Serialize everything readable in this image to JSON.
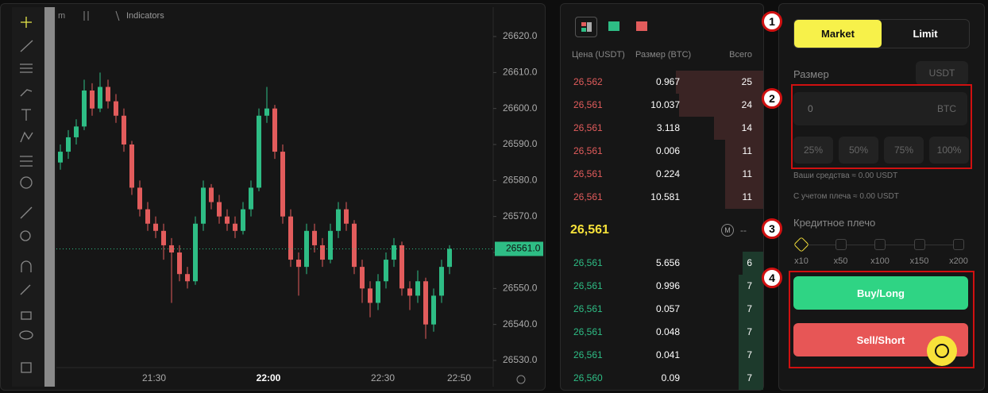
{
  "toolbar": {
    "interval": "m",
    "indicators": "Indicators"
  },
  "chart": {
    "type": "candlestick",
    "candles": [
      [
        26585,
        26590,
        26583,
        26588
      ],
      [
        26588,
        26594,
        26586,
        26592
      ],
      [
        26592,
        26597,
        26590,
        26595
      ],
      [
        26595,
        26608,
        26594,
        26605
      ],
      [
        26605,
        26607,
        26598,
        26600
      ],
      [
        26600,
        26610,
        26599,
        26606
      ],
      [
        26606,
        26608,
        26600,
        26602
      ],
      [
        26602,
        26604,
        26596,
        26598
      ],
      [
        26598,
        26600,
        26588,
        26590
      ],
      [
        26590,
        26591,
        26576,
        26578
      ],
      [
        26578,
        26580,
        26570,
        26572
      ],
      [
        26572,
        26574,
        26566,
        26568
      ],
      [
        26568,
        26570,
        26564,
        26566
      ],
      [
        26566,
        26568,
        26558,
        26562
      ],
      [
        26562,
        26564,
        26546,
        26560
      ],
      [
        26560,
        26562,
        26552,
        26554
      ],
      [
        26554,
        26556,
        26550,
        26552
      ],
      [
        26552,
        26570,
        26551,
        26568
      ],
      [
        26568,
        26580,
        26566,
        26578
      ],
      [
        26578,
        26579,
        26572,
        26574
      ],
      [
        26574,
        26576,
        26568,
        26570
      ],
      [
        26570,
        26572,
        26566,
        26568
      ],
      [
        26568,
        26570,
        26564,
        26566
      ],
      [
        26566,
        26574,
        26565,
        26572
      ],
      [
        26572,
        26580,
        26570,
        26578
      ],
      [
        26578,
        26600,
        26577,
        26598
      ],
      [
        26598,
        26606,
        26596,
        26600
      ],
      [
        26600,
        26601,
        26586,
        26588
      ],
      [
        26588,
        26590,
        26568,
        26570
      ],
      [
        26570,
        26572,
        26556,
        26558
      ],
      [
        26558,
        26560,
        26548,
        26556
      ],
      [
        26556,
        26568,
        26554,
        26566
      ],
      [
        26566,
        26568,
        26560,
        26562
      ],
      [
        26562,
        26564,
        26556,
        26558
      ],
      [
        26558,
        26568,
        26557,
        26566
      ],
      [
        26566,
        26574,
        26564,
        26572
      ],
      [
        26572,
        26574,
        26566,
        26568
      ],
      [
        26568,
        26569,
        26554,
        26556
      ],
      [
        26556,
        26558,
        26546,
        26550
      ],
      [
        26550,
        26552,
        26542,
        26546
      ],
      [
        26546,
        26554,
        26544,
        26552
      ],
      [
        26552,
        26560,
        26550,
        26558
      ],
      [
        26558,
        26564,
        26556,
        26562
      ],
      [
        26562,
        26563,
        26548,
        26550
      ],
      [
        26550,
        26552,
        26544,
        26548
      ],
      [
        26548,
        26555,
        26546,
        26552
      ],
      [
        26552,
        26553,
        26536,
        26540
      ],
      [
        26540,
        26550,
        26538,
        26548
      ],
      [
        26548,
        26558,
        26546,
        26556
      ],
      [
        26556,
        26562,
        26554,
        26561
      ]
    ],
    "up_color": "#2ebd85",
    "down_color": "#e25c5c",
    "ylim": [
      26530,
      26620
    ],
    "yticks": [
      {
        "value": 26530,
        "label": "26530.0"
      },
      {
        "value": 26540,
        "label": "26540.0"
      },
      {
        "value": 26550,
        "label": "26550.0"
      },
      {
        "value": 26560,
        "label": "26560.0"
      },
      {
        "value": 26570,
        "label": "26570.0"
      },
      {
        "value": 26580,
        "label": "26580.0"
      },
      {
        "value": 26590,
        "label": "26590.0"
      },
      {
        "value": 26600,
        "label": "26600.0"
      },
      {
        "value": 26610,
        "label": "26610.0"
      },
      {
        "value": 26620,
        "label": "26620.0"
      }
    ],
    "xticks": [
      "21:30",
      "22:00",
      "22:30",
      "22:50"
    ],
    "current_price": {
      "value": 26561,
      "label": "26561.0"
    }
  },
  "order_book": {
    "headers": [
      "Цена (USDT)",
      "Размер (BTC)",
      "Всего"
    ],
    "asks": [
      {
        "price": "26,562",
        "size": "0.967",
        "total": 25
      },
      {
        "price": "26,561",
        "size": "10.037",
        "total": 24
      },
      {
        "price": "26,561",
        "size": "3.118",
        "total": 14
      },
      {
        "price": "26,561",
        "size": "0.006",
        "total": 11
      },
      {
        "price": "26,561",
        "size": "0.224",
        "total": 11
      },
      {
        "price": "26,561",
        "size": "10.581",
        "total": 11
      }
    ],
    "last_price": "26,561",
    "mark": "M",
    "mark_value": "--",
    "bids": [
      {
        "price": "26,561",
        "size": "5.656",
        "total": 6
      },
      {
        "price": "26,561",
        "size": "0.996",
        "total": 7
      },
      {
        "price": "26,561",
        "size": "0.057",
        "total": 7
      },
      {
        "price": "26,561",
        "size": "0.048",
        "total": 7
      },
      {
        "price": "26,561",
        "size": "0.041",
        "total": 7
      },
      {
        "price": "26,560",
        "size": "0.09",
        "total": 7
      }
    ]
  },
  "order_form": {
    "order_types": [
      "Market",
      "Limit"
    ],
    "size_label": "Размер",
    "currency": "USDT",
    "size_input": "0",
    "size_unit": "BTC",
    "percent_buttons": [
      "25%",
      "50%",
      "75%",
      "100%"
    ],
    "funds": "Ваши средства ≈ 0.00 USDT",
    "leverage_funds": "С учетом плеча ≈ 0.00 USDT",
    "leverage_label": "Кредитное плечо",
    "leverage_options": [
      "x10",
      "x50",
      "x100",
      "x150",
      "x200"
    ],
    "buy": "Buy/Long",
    "sell": "Sell/Short"
  },
  "annotations": [
    "1",
    "2",
    "3",
    "4"
  ]
}
